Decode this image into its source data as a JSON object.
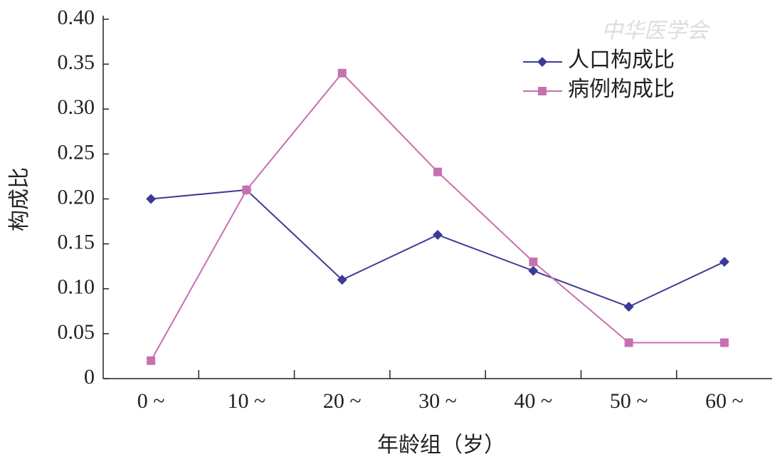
{
  "chart_data": {
    "type": "line",
    "watermark": "中华医学会",
    "x_label": "年龄组（岁）",
    "y_label": "构成比",
    "categories": [
      "0 ~",
      "10 ~",
      "20 ~",
      "30 ~",
      "40 ~",
      "50 ~",
      "60 ~"
    ],
    "series": [
      {
        "name": "人口构成比",
        "color": "#3d3a96",
        "marker": "diamond",
        "values": [
          0.2,
          0.21,
          0.11,
          0.16,
          0.12,
          0.08,
          0.13
        ]
      },
      {
        "name": "病例构成比",
        "color": "#c86fb0",
        "marker": "square",
        "values": [
          0.02,
          0.21,
          0.34,
          0.23,
          0.13,
          0.04,
          0.04
        ]
      }
    ],
    "ylim": [
      0,
      0.4
    ],
    "yticks": [
      0,
      0.05,
      {
        "value": 0.1,
        "label": "0.10"
      },
      0.15,
      {
        "value": 0.2,
        "label": "0.20"
      },
      0.25,
      {
        "value": 0.3,
        "label": "0.30"
      },
      0.35,
      {
        "value": 0.4,
        "label": "0.40"
      }
    ],
    "legend": "top-right",
    "grid": false
  }
}
